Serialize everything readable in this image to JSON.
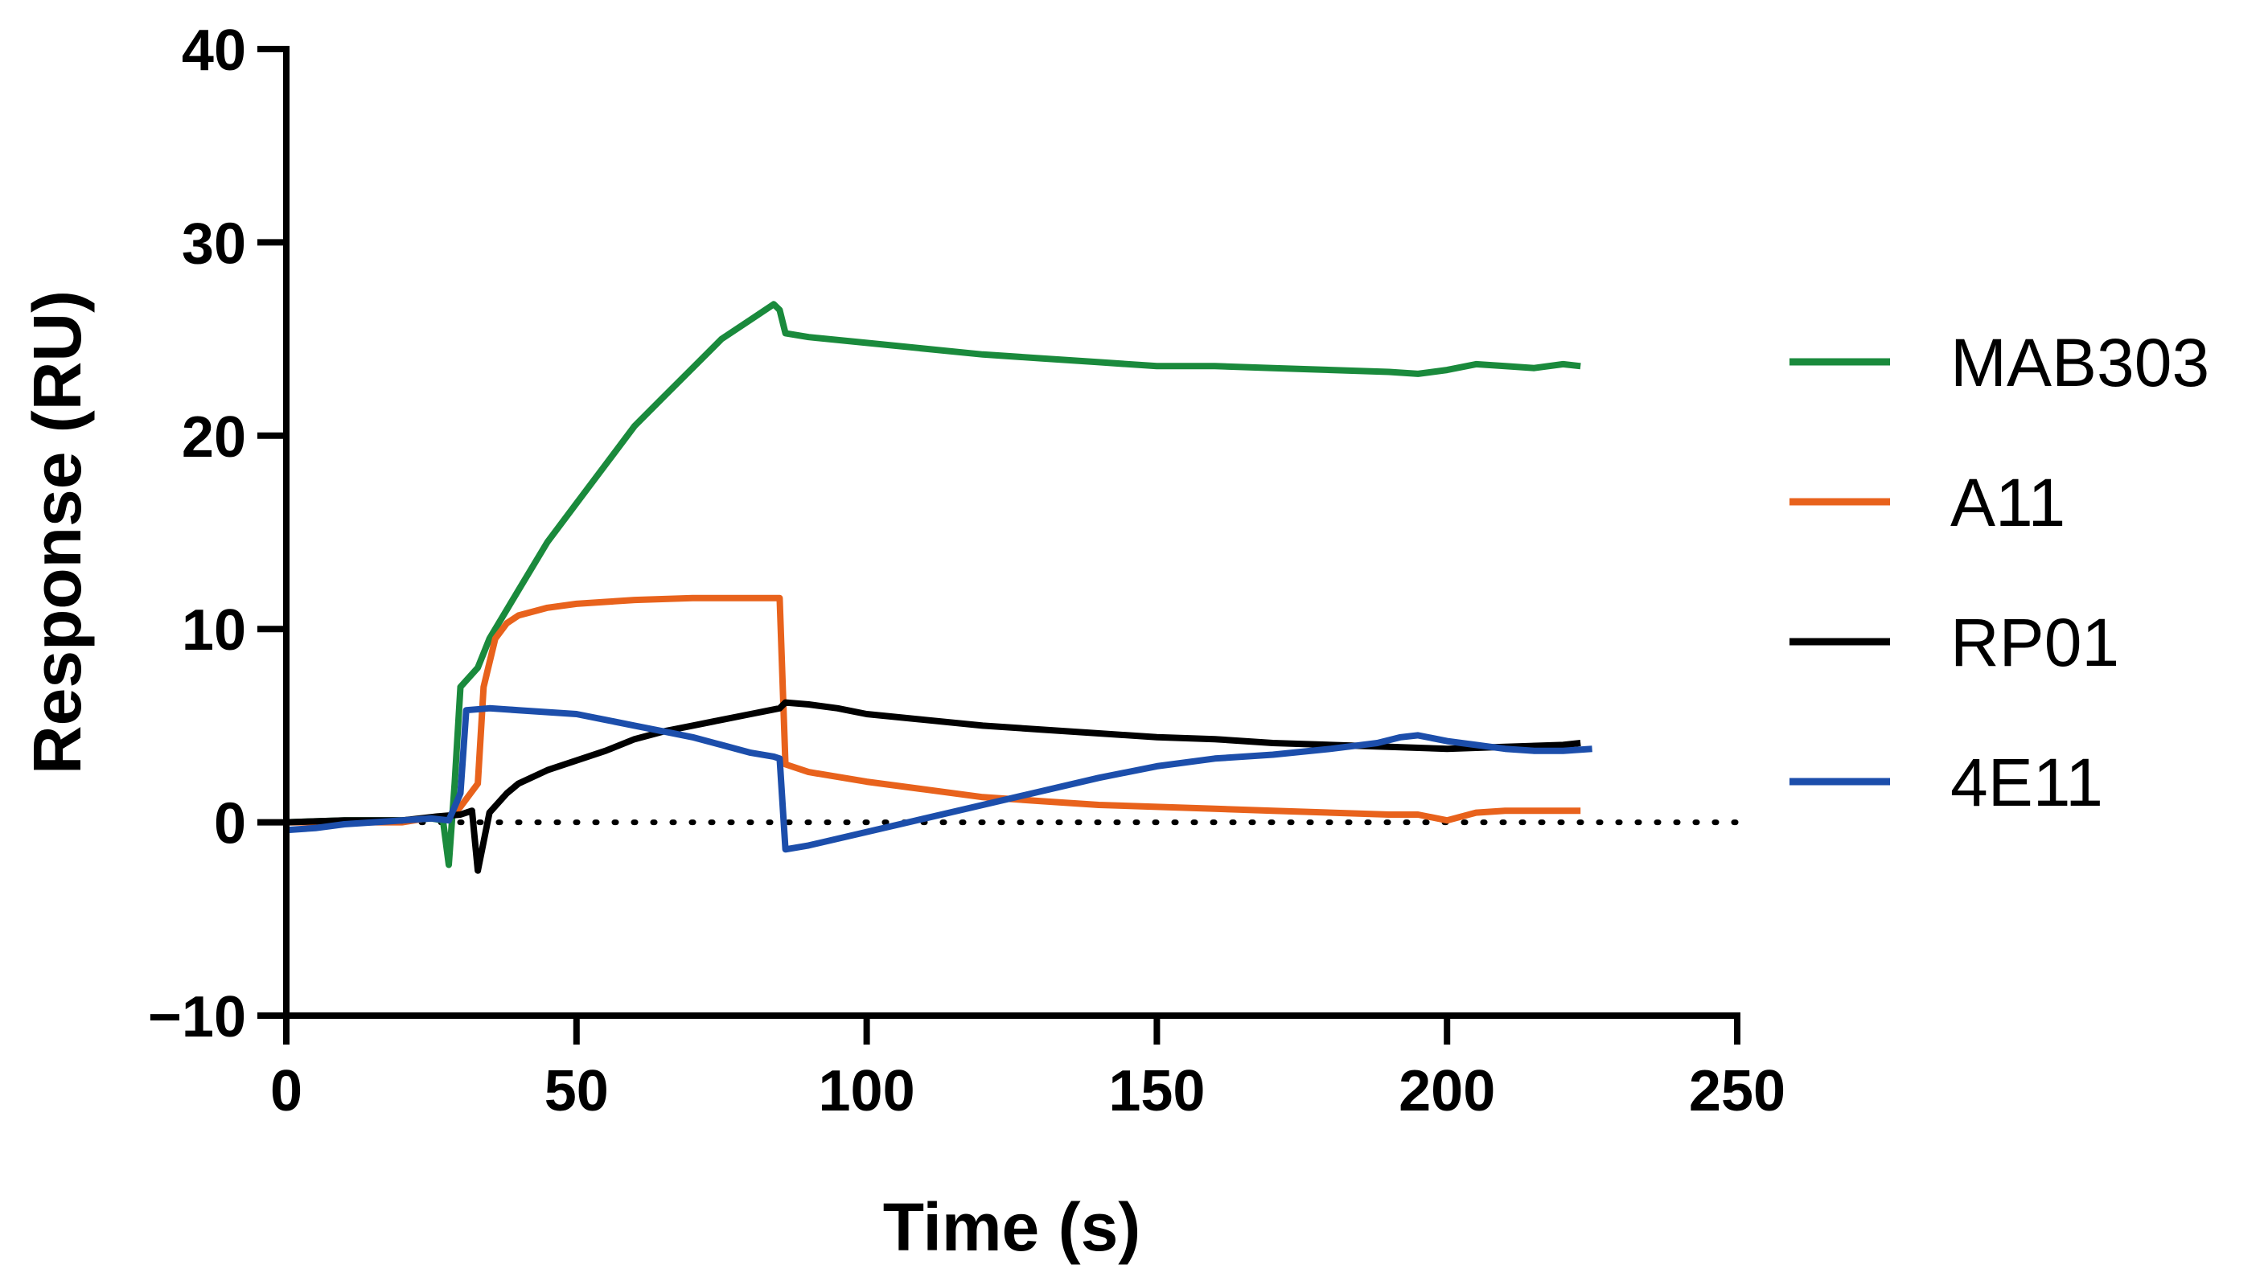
{
  "chart_data": {
    "type": "line",
    "title": "",
    "xlabel": "Time (s)",
    "ylabel": "Response (RU)",
    "xlim": [
      0,
      250
    ],
    "ylim": [
      -10,
      40
    ],
    "xticks": [
      0,
      50,
      100,
      150,
      200,
      250
    ],
    "yticks": [
      -10,
      0,
      10,
      20,
      30,
      40
    ],
    "xtick_labels": [
      "0",
      "50",
      "100",
      "150",
      "200",
      "250"
    ],
    "ytick_labels": [
      "−10",
      "0",
      "10",
      "20",
      "30",
      "40"
    ],
    "grid": false,
    "legend_position": "right",
    "baseline": {
      "y": 0,
      "style": "dotted"
    },
    "series": [
      {
        "name": "MAB303",
        "color": "#1a8a3c",
        "points": [
          [
            0,
            0
          ],
          [
            10,
            0.1
          ],
          [
            20,
            0.1
          ],
          [
            25,
            0.2
          ],
          [
            27,
            0.1
          ],
          [
            28,
            -2.2
          ],
          [
            29,
            2
          ],
          [
            30,
            7
          ],
          [
            33,
            8
          ],
          [
            35,
            9.5
          ],
          [
            40,
            12
          ],
          [
            45,
            14.5
          ],
          [
            50,
            16.5
          ],
          [
            55,
            18.5
          ],
          [
            60,
            20.5
          ],
          [
            65,
            22
          ],
          [
            70,
            23.5
          ],
          [
            75,
            25
          ],
          [
            80,
            26
          ],
          [
            84,
            26.8
          ],
          [
            85,
            26.5
          ],
          [
            86,
            25.3
          ],
          [
            90,
            25.1
          ],
          [
            100,
            24.8
          ],
          [
            110,
            24.5
          ],
          [
            120,
            24.2
          ],
          [
            130,
            24
          ],
          [
            140,
            23.8
          ],
          [
            150,
            23.6
          ],
          [
            160,
            23.6
          ],
          [
            170,
            23.5
          ],
          [
            180,
            23.4
          ],
          [
            190,
            23.3
          ],
          [
            195,
            23.2
          ],
          [
            200,
            23.4
          ],
          [
            205,
            23.7
          ],
          [
            210,
            23.6
          ],
          [
            215,
            23.5
          ],
          [
            220,
            23.7
          ],
          [
            223,
            23.6
          ]
        ]
      },
      {
        "name": "A11",
        "color": "#e8621c",
        "points": [
          [
            0,
            0
          ],
          [
            10,
            0
          ],
          [
            20,
            0
          ],
          [
            26,
            0.3
          ],
          [
            28,
            0.2
          ],
          [
            30,
            0.8
          ],
          [
            32,
            1.6
          ],
          [
            33,
            2
          ],
          [
            34,
            7
          ],
          [
            36,
            9.5
          ],
          [
            38,
            10.3
          ],
          [
            40,
            10.7
          ],
          [
            45,
            11.1
          ],
          [
            50,
            11.3
          ],
          [
            55,
            11.4
          ],
          [
            60,
            11.5
          ],
          [
            70,
            11.6
          ],
          [
            80,
            11.6
          ],
          [
            85,
            11.6
          ],
          [
            86,
            3
          ],
          [
            90,
            2.6
          ],
          [
            100,
            2.1
          ],
          [
            110,
            1.7
          ],
          [
            120,
            1.3
          ],
          [
            130,
            1.1
          ],
          [
            140,
            0.9
          ],
          [
            150,
            0.8
          ],
          [
            160,
            0.7
          ],
          [
            170,
            0.6
          ],
          [
            180,
            0.5
          ],
          [
            190,
            0.4
          ],
          [
            195,
            0.4
          ],
          [
            200,
            0.1
          ],
          [
            205,
            0.5
          ],
          [
            210,
            0.6
          ],
          [
            220,
            0.6
          ],
          [
            223,
            0.6
          ]
        ]
      },
      {
        "name": "RP01",
        "color": "#000000",
        "points": [
          [
            0,
            0
          ],
          [
            10,
            0.1
          ],
          [
            20,
            0.1
          ],
          [
            26,
            0.3
          ],
          [
            30,
            0.4
          ],
          [
            32,
            0.6
          ],
          [
            33,
            -2.5
          ],
          [
            35,
            0.5
          ],
          [
            38,
            1.5
          ],
          [
            40,
            2
          ],
          [
            45,
            2.7
          ],
          [
            50,
            3.2
          ],
          [
            55,
            3.7
          ],
          [
            60,
            4.3
          ],
          [
            65,
            4.7
          ],
          [
            70,
            5
          ],
          [
            75,
            5.3
          ],
          [
            80,
            5.6
          ],
          [
            85,
            5.9
          ],
          [
            86,
            6.2
          ],
          [
            90,
            6.1
          ],
          [
            95,
            5.9
          ],
          [
            100,
            5.6
          ],
          [
            110,
            5.3
          ],
          [
            120,
            5
          ],
          [
            130,
            4.8
          ],
          [
            140,
            4.6
          ],
          [
            150,
            4.4
          ],
          [
            160,
            4.3
          ],
          [
            170,
            4.1
          ],
          [
            180,
            4
          ],
          [
            190,
            3.9
          ],
          [
            200,
            3.8
          ],
          [
            210,
            3.9
          ],
          [
            220,
            4
          ],
          [
            223,
            4.1
          ]
        ]
      },
      {
        "name": "4E11",
        "color": "#1c4eab",
        "points": [
          [
            0,
            -0.4
          ],
          [
            5,
            -0.3
          ],
          [
            10,
            -0.1
          ],
          [
            20,
            0.1
          ],
          [
            25,
            0.2
          ],
          [
            28,
            0.1
          ],
          [
            30,
            1.5
          ],
          [
            31,
            5.8
          ],
          [
            35,
            5.9
          ],
          [
            40,
            5.8
          ],
          [
            45,
            5.7
          ],
          [
            50,
            5.6
          ],
          [
            55,
            5.3
          ],
          [
            60,
            5
          ],
          [
            65,
            4.7
          ],
          [
            70,
            4.4
          ],
          [
            75,
            4
          ],
          [
            80,
            3.6
          ],
          [
            84,
            3.4
          ],
          [
            85,
            3.3
          ],
          [
            86,
            -1.4
          ],
          [
            90,
            -1.2
          ],
          [
            100,
            -0.5
          ],
          [
            110,
            0.2
          ],
          [
            120,
            0.9
          ],
          [
            130,
            1.6
          ],
          [
            140,
            2.3
          ],
          [
            150,
            2.9
          ],
          [
            160,
            3.3
          ],
          [
            170,
            3.5
          ],
          [
            180,
            3.8
          ],
          [
            188,
            4.1
          ],
          [
            192,
            4.4
          ],
          [
            195,
            4.5
          ],
          [
            200,
            4.2
          ],
          [
            205,
            4
          ],
          [
            210,
            3.8
          ],
          [
            215,
            3.7
          ],
          [
            220,
            3.7
          ],
          [
            225,
            3.8
          ]
        ]
      }
    ]
  }
}
